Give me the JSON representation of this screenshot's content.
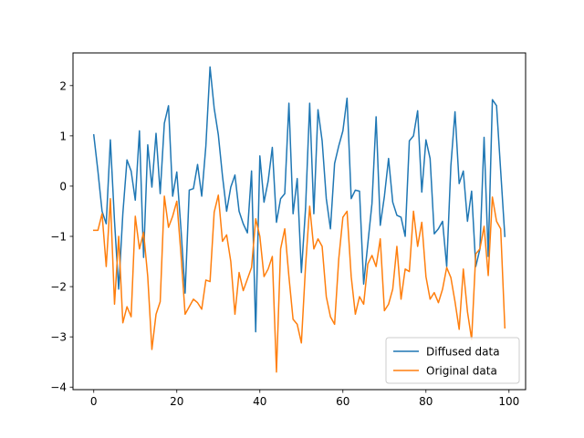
{
  "chart_data": {
    "type": "line",
    "title": "",
    "xlabel": "",
    "ylabel": "",
    "xlim": [
      -5,
      104
    ],
    "ylim": [
      -4.05,
      2.65
    ],
    "xticks": [
      0,
      20,
      40,
      60,
      80,
      100
    ],
    "yticks": [
      -4,
      -3,
      -2,
      -1,
      0,
      1,
      2
    ],
    "grid": false,
    "legend_position": "lower-right",
    "x": [
      0,
      1,
      2,
      3,
      4,
      5,
      6,
      7,
      8,
      9,
      10,
      11,
      12,
      13,
      14,
      15,
      16,
      17,
      18,
      19,
      20,
      21,
      22,
      23,
      24,
      25,
      26,
      27,
      28,
      29,
      30,
      31,
      32,
      33,
      34,
      35,
      36,
      37,
      38,
      39,
      40,
      41,
      42,
      43,
      44,
      45,
      46,
      47,
      48,
      49,
      50,
      51,
      52,
      53,
      54,
      55,
      56,
      57,
      58,
      59,
      60,
      61,
      62,
      63,
      64,
      65,
      66,
      67,
      68,
      69,
      70,
      71,
      72,
      73,
      74,
      75,
      76,
      77,
      78,
      79,
      80,
      81,
      82,
      83,
      84,
      85,
      86,
      87,
      88,
      89,
      90,
      91,
      92,
      93,
      94,
      95,
      96,
      97,
      98,
      99
    ],
    "series": [
      {
        "name": "Diffused data",
        "color": "#1f77b4",
        "values": [
          1.02,
          0.3,
          -0.5,
          -0.75,
          0.92,
          -0.7,
          -2.05,
          -0.55,
          0.52,
          0.3,
          -0.28,
          1.1,
          -1.42,
          0.82,
          -0.02,
          1.05,
          -0.15,
          1.25,
          1.6,
          -0.2,
          0.28,
          -0.85,
          -2.13,
          -0.08,
          -0.05,
          0.43,
          -0.2,
          0.8,
          2.37,
          1.55,
          1.02,
          0.2,
          -0.5,
          -0.02,
          0.22,
          -0.5,
          -0.75,
          -0.93,
          0.3,
          -2.9,
          0.6,
          -0.32,
          0.1,
          0.77,
          -0.72,
          -0.25,
          -0.15,
          1.65,
          -0.55,
          0.15,
          -1.72,
          -0.45,
          1.65,
          -0.55,
          1.52,
          0.9,
          -0.25,
          -0.85,
          0.45,
          0.8,
          1.1,
          1.75,
          -0.25,
          -0.08,
          -0.1,
          -1.95,
          -1.15,
          -0.35,
          1.38,
          -0.78,
          -0.2,
          0.55,
          -0.32,
          -0.58,
          -0.62,
          -1.0,
          0.9,
          1.0,
          1.5,
          -0.12,
          0.92,
          0.55,
          -0.95,
          -0.85,
          -0.7,
          -1.6,
          0.4,
          1.48,
          0.05,
          0.3,
          -0.7,
          -0.1,
          -1.6,
          -1.25,
          0.97,
          -1.4,
          1.72,
          1.6,
          0.3,
          -1.0
        ]
      },
      {
        "name": "Original data",
        "color": "#ff7f0e",
        "values": [
          -0.88,
          -0.88,
          -0.55,
          -1.6,
          -0.25,
          -2.35,
          -1.0,
          -2.72,
          -2.4,
          -2.6,
          -0.6,
          -1.25,
          -0.92,
          -1.8,
          -3.25,
          -2.55,
          -2.3,
          -0.2,
          -0.82,
          -0.6,
          -0.3,
          -1.35,
          -2.55,
          -2.4,
          -2.25,
          -2.32,
          -2.45,
          -1.87,
          -1.9,
          -0.52,
          -0.18,
          -1.1,
          -0.97,
          -1.5,
          -2.55,
          -1.72,
          -2.08,
          -1.85,
          -1.62,
          -0.65,
          -1.0,
          -1.8,
          -1.65,
          -1.4,
          -3.7,
          -1.25,
          -0.85,
          -1.8,
          -2.65,
          -2.75,
          -3.12,
          -1.6,
          -0.4,
          -1.25,
          -1.05,
          -1.2,
          -2.2,
          -2.6,
          -2.75,
          -1.45,
          -0.62,
          -0.5,
          -1.8,
          -2.55,
          -2.2,
          -2.35,
          -1.55,
          -1.38,
          -1.6,
          -1.05,
          -2.48,
          -2.35,
          -2.05,
          -1.2,
          -2.25,
          -1.65,
          -1.7,
          -0.5,
          -1.2,
          -0.72,
          -1.8,
          -2.25,
          -2.12,
          -2.32,
          -2.05,
          -1.62,
          -1.82,
          -2.3,
          -2.85,
          -1.65,
          -2.5,
          -3.05,
          -1.35,
          -1.25,
          -0.8,
          -1.78,
          -0.22,
          -0.7,
          -0.85,
          -2.82
        ]
      }
    ]
  }
}
